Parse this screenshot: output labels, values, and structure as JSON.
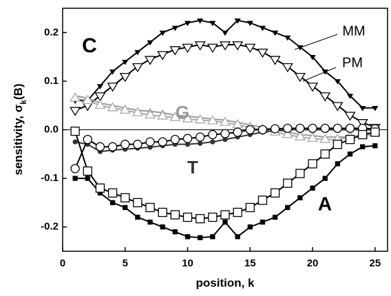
{
  "chart_data": {
    "type": "line",
    "x_label": "position, k",
    "y_label_parts": [
      "sensitivity, σ",
      "k",
      "(B)"
    ],
    "xlim": [
      0,
      26
    ],
    "ylim": [
      -0.25,
      0.25
    ],
    "xticks": [
      0,
      5,
      10,
      15,
      20,
      25
    ],
    "yticks": [
      0.2,
      0.1,
      {
        "value": 0,
        "label": "0.0"
      },
      -0.1,
      -0.2
    ],
    "x": [
      1,
      2,
      3,
      4,
      5,
      6,
      7,
      8,
      9,
      10,
      11,
      12,
      13,
      14,
      15,
      16,
      17,
      18,
      19,
      20,
      21,
      22,
      23,
      24,
      25
    ],
    "series": [
      {
        "color": "#000000",
        "marker": "down",
        "filled": true,
        "values": [
          0.06,
          0.06,
          0.09,
          0.12,
          0.14,
          0.16,
          0.18,
          0.2,
          0.21,
          0.22,
          0.225,
          0.22,
          0.2,
          0.225,
          0.22,
          0.21,
          0.2,
          0.19,
          0.17,
          0.15,
          0.12,
          0.1,
          0.07,
          0.045,
          0.045
        ]
      },
      {
        "color": "#000000",
        "marker": "down",
        "filled": false,
        "values": [
          0.04,
          0.05,
          0.07,
          0.09,
          0.11,
          0.13,
          0.145,
          0.155,
          0.165,
          0.17,
          0.175,
          0.17,
          0.175,
          0.175,
          0.17,
          0.16,
          0.145,
          0.13,
          0.11,
          0.09,
          0.07,
          0.05,
          0.03,
          0.015,
          0.005
        ]
      },
      {
        "color": "#999999",
        "marker": "up",
        "filled": true,
        "values": [
          0.07,
          0.065,
          0.055,
          0.05,
          0.045,
          0.04,
          0.038,
          0.035,
          0.03,
          0.028,
          0.025,
          0.022,
          0.02,
          0.015,
          0.01,
          0.005,
          0,
          -0.005,
          -0.01,
          -0.012,
          -0.015,
          -0.015,
          -0.015,
          -0.012,
          -0.01
        ]
      },
      {
        "color": "#aaaaaa",
        "marker": "up",
        "filled": false,
        "values": [
          0.065,
          0.06,
          0.05,
          0.045,
          0.04,
          0.035,
          0.03,
          0.028,
          0.025,
          0.022,
          0.02,
          0.018,
          0.015,
          0.01,
          0.005,
          0,
          -0.005,
          -0.01,
          -0.015,
          -0.018,
          -0.02,
          -0.02,
          -0.015,
          -0.01,
          -0.005
        ]
      },
      {
        "color": "#333333",
        "marker": "circle",
        "filled": true,
        "values": [
          -0.025,
          -0.03,
          -0.045,
          -0.042,
          -0.04,
          -0.038,
          -0.036,
          -0.033,
          -0.03,
          -0.03,
          -0.028,
          -0.025,
          -0.02,
          -0.015,
          -0.01,
          -0.005,
          -0.002,
          0,
          0,
          0,
          0,
          0,
          0,
          0,
          0
        ]
      },
      {
        "color": "#000000",
        "marker": "circle",
        "filled": false,
        "values": [
          -0.08,
          -0.02,
          -0.035,
          -0.035,
          -0.03,
          -0.03,
          -0.025,
          -0.025,
          -0.02,
          -0.018,
          -0.015,
          -0.01,
          -0.008,
          -0.005,
          0,
          0,
          0.002,
          0.003,
          0.003,
          0.003,
          0.003,
          0.003,
          0.003,
          0.003,
          0.002
        ]
      },
      {
        "color": "#000000",
        "marker": "square",
        "filled": true,
        "values": [
          -0.1,
          -0.1,
          -0.13,
          -0.15,
          -0.16,
          -0.18,
          -0.19,
          -0.2,
          -0.21,
          -0.22,
          -0.222,
          -0.22,
          -0.19,
          -0.22,
          -0.2,
          -0.19,
          -0.18,
          -0.16,
          -0.14,
          -0.12,
          -0.1,
          -0.07,
          -0.05,
          -0.035,
          -0.033
        ]
      },
      {
        "color": "#000000",
        "marker": "square",
        "filled": false,
        "values": [
          -0.003,
          -0.085,
          -0.12,
          -0.13,
          -0.14,
          -0.15,
          -0.16,
          -0.17,
          -0.175,
          -0.18,
          -0.183,
          -0.18,
          -0.175,
          -0.17,
          -0.16,
          -0.145,
          -0.13,
          -0.11,
          -0.09,
          -0.07,
          -0.05,
          -0.03,
          -0.02,
          -0.01,
          -0.005
        ]
      }
    ],
    "annotations": [
      "C",
      "G",
      "T",
      "A",
      "MM",
      "PM"
    ]
  }
}
